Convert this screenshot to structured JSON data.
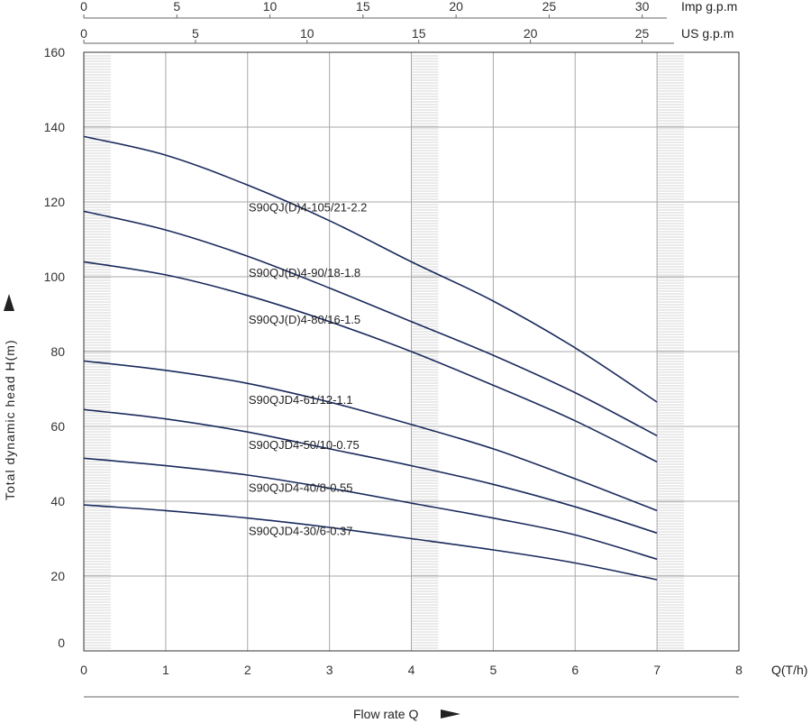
{
  "chart_data": {
    "type": "line",
    "title": "",
    "xlabel": "Flow rate Q",
    "xunit": "Q(T/h)",
    "ylabel": "Total dynamic head H(m)",
    "xlim": [
      0,
      8
    ],
    "ylim": [
      0,
      160
    ],
    "x_ticks": [
      "0",
      "1",
      "2",
      "3",
      "4",
      "5",
      "6",
      "7",
      "8"
    ],
    "y_ticks": [
      "0",
      "20",
      "40",
      "60",
      "80",
      "100",
      "120",
      "140",
      "160"
    ],
    "grid": true,
    "secondary_axes": [
      {
        "label": "Imp g.p.m",
        "ticks": [
          0,
          5,
          10,
          15,
          20,
          25,
          30
        ],
        "tick_labels": [
          "0",
          "5",
          "10",
          "15",
          "20",
          "25",
          "30"
        ],
        "x_per_tick": 0.2273
      },
      {
        "label": "US g.p.m",
        "ticks": [
          0,
          5,
          10,
          15,
          20,
          25
        ],
        "tick_labels": [
          "0",
          "5",
          "10",
          "15",
          "20",
          "25"
        ],
        "x_per_tick": 0.2727
      }
    ],
    "recommended_ranges": [
      [
        0,
        0.33
      ],
      [
        4,
        4.33
      ],
      [
        7,
        7.33
      ]
    ],
    "series": [
      {
        "name": "S90QJ(D)4-105/21-2.2",
        "x": [
          0,
          1,
          2,
          3,
          4,
          5,
          6,
          7
        ],
        "y": [
          137.5,
          132.5,
          124.5,
          115,
          104,
          93.5,
          81,
          66.5
        ],
        "label_at": [
          1,
          117.5
        ]
      },
      {
        "name": "S90QJ(D)4-90/18-1.8",
        "x": [
          0,
          1,
          2,
          3,
          4,
          5,
          6,
          7
        ],
        "y": [
          117.5,
          112.5,
          105.5,
          97,
          88,
          79,
          69,
          57.5
        ],
        "label_at": [
          1,
          100
        ]
      },
      {
        "name": "S90QJ(D)4-80/16-1.5",
        "x": [
          0,
          1,
          2,
          3,
          4,
          5,
          6,
          7
        ],
        "y": [
          104,
          100.5,
          95,
          88,
          80,
          71,
          61.5,
          50.5
        ],
        "label_at": [
          1,
          87.5
        ]
      },
      {
        "name": "S90QJD4-61/12-1.1",
        "x": [
          0,
          1,
          2,
          3,
          4,
          5,
          6,
          7
        ],
        "y": [
          77.5,
          75,
          71.5,
          66.5,
          60.5,
          54,
          46,
          37.5
        ],
        "label_at": [
          1,
          66
        ]
      },
      {
        "name": "S90QJD4-50/10-0.75",
        "x": [
          0,
          1,
          2,
          3,
          4,
          5,
          6,
          7
        ],
        "y": [
          64.5,
          62,
          58.5,
          54,
          49.5,
          44.5,
          38.5,
          31.5
        ],
        "label_at": [
          1,
          54
        ]
      },
      {
        "name": "S90QJD4-40/8-0.55",
        "x": [
          0,
          1,
          2,
          3,
          4,
          5,
          6,
          7
        ],
        "y": [
          51.5,
          49.5,
          47,
          43.5,
          39.5,
          35.5,
          31,
          24.5
        ],
        "label_at": [
          1,
          42.5
        ]
      },
      {
        "name": "S90QJD4-30/6-0.37",
        "x": [
          0,
          1,
          2,
          3,
          4,
          5,
          6,
          7
        ],
        "y": [
          39,
          37.5,
          35.5,
          33,
          30,
          27,
          23.5,
          19
        ],
        "label_at": [
          1,
          31
        ]
      }
    ],
    "colors": {
      "curve": "#1a2a5c",
      "grid": "#a8a8a8",
      "frame": "#333333",
      "band": "#c8c8c8"
    }
  }
}
